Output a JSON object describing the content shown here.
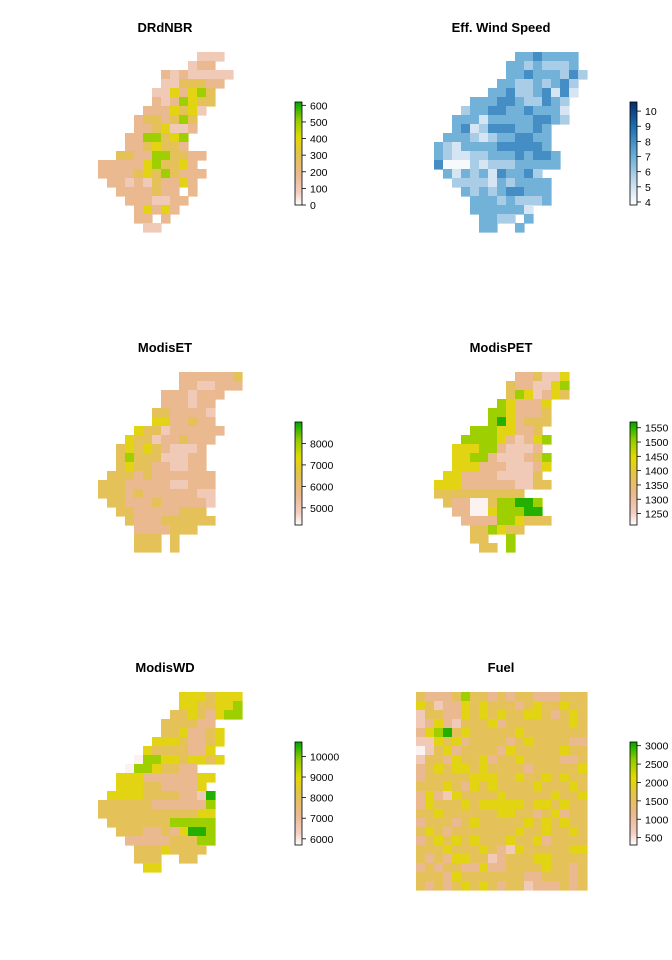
{
  "palette": {
    "terrain_stops": [
      "#ffffff",
      "#f2cfc3",
      "#ebb98f",
      "#e3c34c",
      "#e1da00",
      "#8bcc00",
      "#00a600"
    ],
    "blue_stops": [
      "#ffffff",
      "#c6dbef",
      "#6baed6",
      "#2171b5",
      "#08306b"
    ]
  },
  "chart_data": [
    {
      "type": "heatmap",
      "title": "DRdNBR",
      "palette": "terrain",
      "zlim": [
        0,
        620
      ],
      "legend_ticks": [
        0,
        100,
        200,
        300,
        400,
        500,
        600
      ],
      "legend_labels": [
        "0",
        "100",
        "200",
        "300",
        "400",
        "500",
        "600"
      ],
      "grid": {
        "ncol": 19,
        "rows": [
          ".............111...",
          "............122....",
          ".........21211111..",
          ".........1133322...",
          "........1142453....",
          "........2125433....",
          ".......2224341.....",
          "......2332353......",
          "......2234112......",
          ".....2255345.......",
          ".....2234332.......",
          "....3322553322.....",
          "..22222453342......",
          "..222234353222.....",
          "...2212132242......",
          "....2222322.2......",
          ".....2221122.......",
          "......24242........",
          "......22.2.........",
          ".......11.........."
        ]
      }
    },
    {
      "type": "heatmap",
      "title": "Eff. Wind Speed",
      "palette": "blue",
      "zlim": [
        3.8,
        10.6
      ],
      "legend_ticks": [
        4,
        5,
        6,
        7,
        8,
        9,
        10
      ],
      "legend_labels": [
        "4",
        "5",
        "6",
        "7",
        "8",
        "9",
        "10"
      ],
      "grid": {
        "ncol": 19,
        "rows": [
          "...........3343333.",
          "..........33232223.",
          "..........334333242",
          ".........332232342.",
          "........3342234141.",
          "......33344322432..",
          ".....233443343331..",
          "....3331333334432..",
          "....34124443343....",
          "...333212334433....",
          "..3213333444443....",
          "..32112233343443...",
          "..40002122233333...",
          "...31323143342.....",
          "....22221323333....",
          ".....3232344333....",
          "......333232223....",
          "......3333331......",
          ".......3322.3......",
          ".......33..3......."
        ]
      }
    },
    {
      "type": "heatmap",
      "title": "ModisET",
      "palette": "terrain",
      "zlim": [
        4200,
        9000
      ],
      "legend_ticks": [
        5000,
        6000,
        7000,
        8000
      ],
      "legend_labels": [
        "5000",
        "6000",
        "7000",
        "8000"
      ],
      "grid": {
        "ncol": 19,
        "rows": [
          "...........2222223.",
          "...........2211222.",
          ".........2221222...",
          ".........222122....",
          "........3322221....",
          "........4422322....",
          "......4331222222...",
          ".....4331223222....",
          "....3434321112.....",
          "....3533311122.....",
          "....3433221122.....",
          "...333232222222....",
          "..3332222211222....",
          "..3332322222211....",
          "...332223222221....",
          "....3322222333.....",
          ".....3222333333....",
          "......2222333......",
          "......333.3........",
          "......333.3........"
        ]
      }
    },
    {
      "type": "heatmap",
      "title": "ModisPET",
      "palette": "terrain",
      "zlim": [
        1210,
        1570
      ],
      "legend_ticks": [
        1250,
        1300,
        1350,
        1400,
        1450,
        1500,
        1550
      ],
      "legend_labels": [
        "1250",
        "1300",
        "1350",
        "1400",
        "1450",
        "1500",
        "1550"
      ],
      "grid": {
        "ncol": 19,
        "rows": [
          "...........223114.",
          "..........3221145..",
          "..........3541243..",
          ".........542224....",
          "........5542223....",
          "........5642333....",
          "......55544223.....",
          ".....5555421245....",
          "....4445521112.....",
          "....44552111235....",
          "....44422211124....",
          "...44222211113.....",
          "..4442222221133....",
          "..3333333333.......",
          "...32200355665.....",
          "....2200455566.....",
          ".....2222554333....",
          "......335433.......",
          "......33..5........",
          ".......33.5........"
        ]
      }
    },
    {
      "type": "heatmap",
      "title": "ModisWD",
      "palette": "terrain",
      "zlim": [
        5700,
        10700
      ],
      "legend_ticks": [
        6000,
        7000,
        8000,
        9000,
        10000
      ],
      "legend_labels": [
        "6000",
        "7000",
        "8000",
        "9000",
        "10000"
      ],
      "grid": {
        "ncol": 19,
        "rows": [
          "...........4443444.",
          "...........4433445.",
          "..........33432455.",
          ".........333322....",
          ".........3342234...",
          "........44432234...",
          ".......43333224....",
          "......0554434434...",
          ".....05543322.....",
          "....44422222244....",
          "....4443322224.....",
          "...444433332216....",
          "..3333332222225....",
          "..3333333333344....",
          "...333333355555....",
          "....33322324665....",
          ".....2222233355....",
          "......33343333.....",
          "......333..33......",
          ".......44.........."
        ]
      }
    },
    {
      "type": "heatmap",
      "title": "Fuel",
      "palette": "terrain",
      "zlim": [
        300,
        3100
      ],
      "legend_ticks": [
        500,
        1000,
        1500,
        2000,
        2500,
        3000
      ],
      "legend_labels": [
        "500",
        "1000",
        "1500",
        "2000",
        "2500",
        "3000"
      ],
      "grid": {
        "ncol": 19,
        "rows": [
          "3222353323233222333",
          "4312243433323433433",
          "1332243434334432343",
          "1242133342333333343",
          "2456343333343333333",
          "1143423333234333322",
          "0134233332433333433",
          "1332433423343333223",
          "2343443433332333334",
          "2333334443343343433",
          "3334324343333433343",
          "2421433334333334334",
          "2433343444443443433",
          "3343333334433234233",
          "2333234333334343433",
          "3432333333343343343",
          "2343434333433423333",
          "3334333432143333344",
          "3232443312333443333",
          "2323322422333343323",
          "3332433333332233323",
          "3232343432331222323"
        ]
      }
    }
  ]
}
